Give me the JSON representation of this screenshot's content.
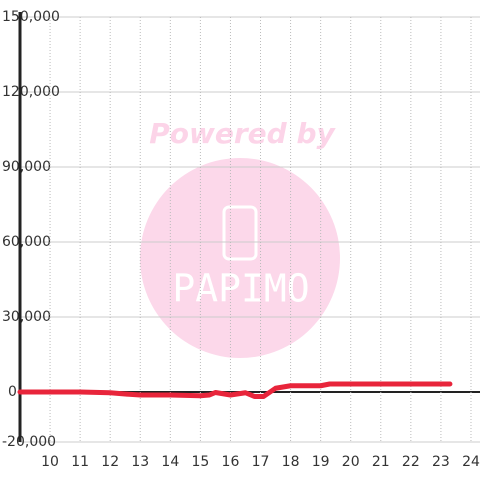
{
  "chart_data": {
    "type": "line",
    "x": [
      9,
      10,
      11,
      12,
      12.5,
      13,
      14,
      15,
      15.3,
      15.5,
      16,
      16.5,
      16.8,
      17.1,
      17.5,
      18,
      19,
      19.3,
      20,
      21,
      22,
      23.3
    ],
    "series": [
      {
        "color": "#e8253b",
        "values": [
          0,
          0,
          0,
          -300,
          -800,
          -1200,
          -1200,
          -1500,
          -1200,
          -200,
          -1200,
          -300,
          -1800,
          -1800,
          1500,
          2500,
          2500,
          3200,
          3200,
          3200,
          3200,
          3200
        ]
      }
    ],
    "xlim": [
      9,
      24.3
    ],
    "xticks": [
      10,
      11,
      12,
      13,
      14,
      15,
      16,
      17,
      18,
      19,
      20,
      21,
      22,
      23,
      24
    ],
    "ylim": [
      -20000,
      150000
    ],
    "yticks": [
      {
        "value": 150000,
        "label": "150,000"
      },
      {
        "value": 120000,
        "label": "120,000"
      },
      {
        "value": 90000,
        "label": "90,000"
      },
      {
        "value": 60000,
        "label": "60,000"
      },
      {
        "value": 30000,
        "label": "30,000"
      },
      0,
      {
        "value": -20000,
        "label": "-20,000"
      }
    ],
    "grid": true
  },
  "watermark": {
    "text": "Powered by",
    "logo_text": "PAPIMO"
  }
}
